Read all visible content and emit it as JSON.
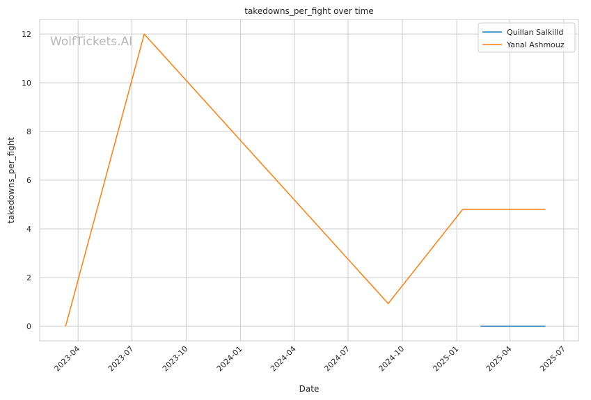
{
  "chart_data": {
    "type": "line",
    "title": "takedowns_per_fight over time",
    "xlabel": "Date",
    "ylabel": "takedowns_per_fight",
    "watermark": "WolfTickets.AI",
    "xlim": [
      "2023-01-26",
      "2025-07-26"
    ],
    "ylim": [
      -0.6,
      12.6
    ],
    "yticks": [
      0,
      2,
      4,
      6,
      8,
      10,
      12
    ],
    "xticks": [
      "2023-04",
      "2023-07",
      "2023-10",
      "2024-01",
      "2024-04",
      "2024-07",
      "2024-10",
      "2025-01",
      "2025-04",
      "2025-07"
    ],
    "grid": true,
    "legend_position": "top-right",
    "series": [
      {
        "name": "Quillan Salkilld",
        "color": "#1f77b4",
        "points": [
          {
            "x": "2025-02-10",
            "y": 0
          },
          {
            "x": "2025-05-31",
            "y": 0
          }
        ]
      },
      {
        "name": "Yanal Ashmouz",
        "color": "#ff7f0e",
        "points": [
          {
            "x": "2023-03-11",
            "y": 0
          },
          {
            "x": "2023-07-22",
            "y": 12
          },
          {
            "x": "2024-09-07",
            "y": 0.93
          },
          {
            "x": "2025-01-11",
            "y": 4.8
          },
          {
            "x": "2025-05-31",
            "y": 4.8
          }
        ]
      }
    ]
  }
}
